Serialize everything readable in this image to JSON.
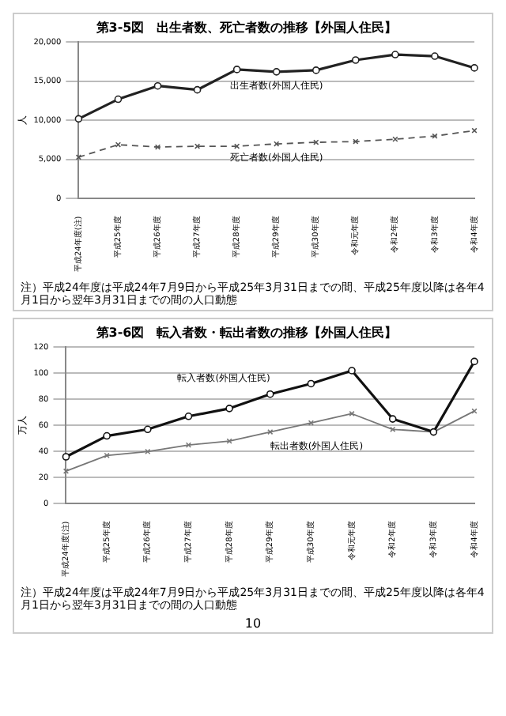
{
  "chart_data": [
    {
      "type": "line",
      "title": "第3-5図　出生者数、死亡者数の推移【外国人住民】",
      "ylabel": "人",
      "categories": [
        "平成24年度(注)",
        "平成25年度",
        "平成26年度",
        "平成27年度",
        "平成28年度",
        "平成29年度",
        "平成30年度",
        "令和元年度",
        "令和2年度",
        "令和3年度",
        "令和4年度"
      ],
      "series": [
        {
          "name": "出生者数(外国人住民)",
          "color": "#222222",
          "marker": "circle",
          "line_style": "solid",
          "values": [
            10200,
            12700,
            14400,
            13900,
            16500,
            16200,
            16400,
            17700,
            18400,
            18200,
            16700
          ]
        },
        {
          "name": "死亡者数(外国人住民)",
          "color": "#555555",
          "marker": "cross",
          "line_style": "dashed",
          "values": [
            5300,
            6900,
            6600,
            6700,
            6700,
            7000,
            7200,
            7300,
            7600,
            8000,
            8700
          ]
        }
      ],
      "ylim": [
        0,
        20000
      ],
      "yticks": [
        0,
        {
          "value": 5000,
          "label": "5,000"
        },
        {
          "value": 10000,
          "label": "10,000"
        },
        {
          "value": 15000,
          "label": "15,000"
        },
        {
          "value": 20000,
          "label": "20,000"
        }
      ],
      "grid": "y",
      "annotations": [
        "注）平成24年度は平成24年7月9日から平成25年3月31日までの間、平成25年度以降は各年4月1日から翌年3月31日までの間の人口動態"
      ]
    },
    {
      "type": "line",
      "title": "第3-6図　転入者数・転出者数の推移【外国人住民】",
      "ylabel": "万人",
      "categories": [
        "平成24年度(注)",
        "平成25年度",
        "平成26年度",
        "平成27年度",
        "平成28年度",
        "平成29年度",
        "平成30年度",
        "令和元年度",
        "令和2年度",
        "令和3年度",
        "令和4年度"
      ],
      "series": [
        {
          "name": "転入者数(外国人住民)",
          "color": "#111111",
          "marker": "circle",
          "line_style": "solid",
          "values": [
            36,
            52,
            57,
            67,
            73,
            84,
            92,
            102,
            65,
            55,
            109
          ]
        },
        {
          "name": "転出者数(外国人住民)",
          "color": "#777777",
          "marker": "cross",
          "line_style": "solid",
          "values": [
            25,
            37,
            40,
            45,
            48,
            55,
            62,
            69,
            57,
            55,
            71
          ]
        }
      ],
      "ylim": [
        0,
        120
      ],
      "yticks": [
        0,
        20,
        40,
        60,
        80,
        100,
        120
      ],
      "grid": "y",
      "annotations": [
        "注）平成24年度は平成24年7月9日から平成25年3月31日までの間、平成25年度以降は各年4月1日から翌年3月31日までの間の人口動態",
        "10"
      ]
    }
  ]
}
